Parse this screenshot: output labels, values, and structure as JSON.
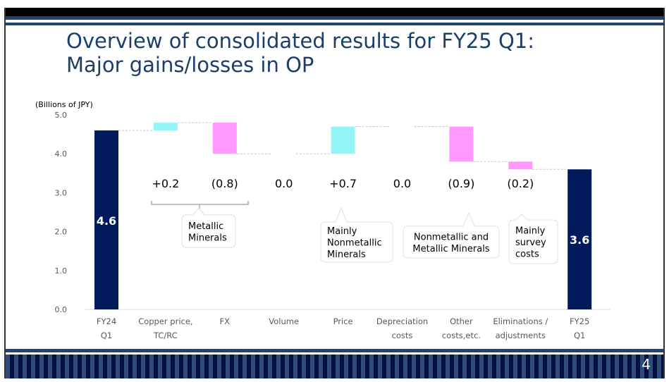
{
  "slide": {
    "title_line1": "Overview of consolidated results for FY25 Q1:",
    "title_line2": "Major gains/losses in OP",
    "page_number": "4"
  },
  "colors": {
    "total": "#001a5c",
    "increase": "#94f5f7",
    "decrease": "#ff99ff",
    "title": "#1b3e6b",
    "band": "#1f4571"
  },
  "chart_data": {
    "type": "waterfall",
    "title": "Major gains/losses in OP",
    "ylabel": "(Billions of JPY)",
    "ylim": [
      0,
      5
    ],
    "yticks": [
      "0.0",
      "1.0",
      "2.0",
      "3.0",
      "4.0",
      "5.0"
    ],
    "grid": false,
    "categories": [
      {
        "label_line1": "FY24",
        "label_line2": "Q1",
        "kind": "total",
        "value": 4.6,
        "label": "4.6"
      },
      {
        "label_line1": "Copper price,",
        "label_line2": "TC/RC",
        "kind": "delta",
        "value": 0.2,
        "label": "+0.2"
      },
      {
        "label_line1": "FX",
        "label_line2": "",
        "kind": "delta",
        "value": -0.8,
        "label": "(0.8)"
      },
      {
        "label_line1": "Volume",
        "label_line2": "",
        "kind": "delta",
        "value": 0.0,
        "label": "0.0"
      },
      {
        "label_line1": "Price",
        "label_line2": "",
        "kind": "delta",
        "value": 0.7,
        "label": "+0.7"
      },
      {
        "label_line1": "Depreciation",
        "label_line2": "costs",
        "kind": "delta",
        "value": 0.0,
        "label": "0.0"
      },
      {
        "label_line1": "Other",
        "label_line2": "costs,etc.",
        "kind": "delta",
        "value": -0.9,
        "label": "(0.9)"
      },
      {
        "label_line1": "Eliminations /",
        "label_line2": "adjustments",
        "kind": "delta",
        "value": -0.2,
        "label": "(0.2)"
      },
      {
        "label_line1": "FY25",
        "label_line2": "Q1",
        "kind": "total",
        "value": 3.6,
        "label": "3.6"
      }
    ],
    "annotations": [
      {
        "name": "metallic-minerals",
        "lines": [
          "Metallic",
          "Minerals"
        ],
        "applies_to": [
          "Copper price, TC/RC",
          "FX"
        ]
      },
      {
        "name": "mainly-nonmetallic",
        "lines": [
          "Mainly",
          "Nonmetallic",
          "Minerals"
        ],
        "applies_to": [
          "Price"
        ]
      },
      {
        "name": "nonmetallic-and-metallic",
        "lines": [
          "Nonmetallic and",
          "Metallic Minerals"
        ],
        "applies_to": [
          "Other costs,etc."
        ]
      },
      {
        "name": "mainly-survey-costs",
        "lines": [
          "Mainly",
          "survey",
          "costs"
        ],
        "applies_to": [
          "Eliminations / adjustments"
        ]
      }
    ]
  }
}
